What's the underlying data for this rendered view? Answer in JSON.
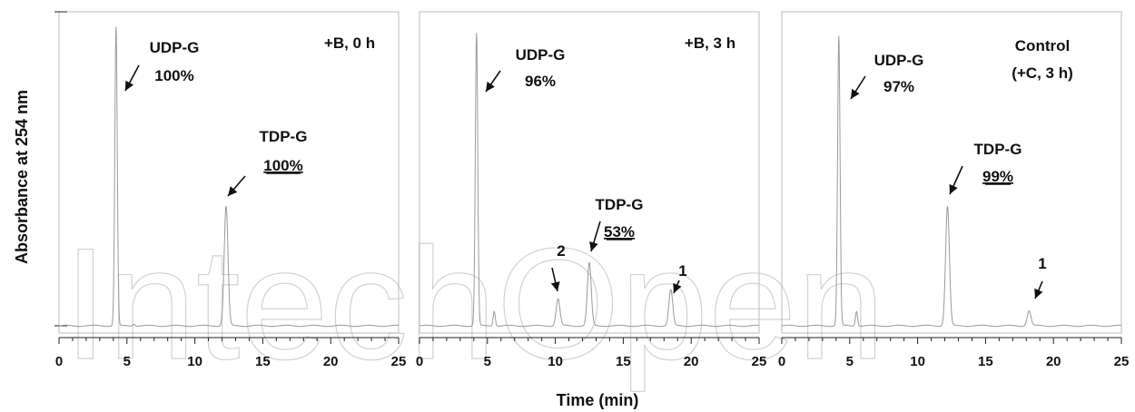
{
  "chart_data": [
    {
      "type": "line",
      "title": "+B, 0 h",
      "xlabel": "Time (min)",
      "ylabel": "Absorbance at 254 nm",
      "xlim": [
        0,
        25
      ],
      "xticks": [
        "0",
        "5",
        "10",
        "15",
        "20",
        "25"
      ],
      "grid": false,
      "peaks": [
        {
          "time": 4.2,
          "height": 1.0,
          "label": "UDP-G",
          "value": "100%",
          "underline": false
        },
        {
          "time": 12.3,
          "height": 0.4,
          "label": "TDP-G",
          "value": "100%",
          "underline": true
        }
      ]
    },
    {
      "type": "line",
      "title": "+B, 3 h",
      "xlabel": "Time (min)",
      "ylabel": "Absorbance at 254 nm",
      "xlim": [
        0,
        25
      ],
      "xticks": [
        "0",
        "5",
        "10",
        "15",
        "20",
        "25"
      ],
      "grid": false,
      "peaks": [
        {
          "time": 4.2,
          "height": 0.98,
          "label": "UDP-G",
          "value": "96%",
          "underline": false
        },
        {
          "time": 10.2,
          "height": 0.09,
          "label": "2",
          "value": "",
          "underline": false
        },
        {
          "time": 12.5,
          "height": 0.21,
          "label": "TDP-G",
          "value": "53%",
          "underline": true
        },
        {
          "time": 18.5,
          "height": 0.12,
          "label": "1",
          "value": "",
          "underline": false
        }
      ]
    },
    {
      "type": "line",
      "title": "Control\n(+C, 3 h)",
      "xlabel": "Time (min)",
      "ylabel": "Absorbance at 254 nm",
      "xlim": [
        0,
        25
      ],
      "xticks": [
        "0",
        "5",
        "10",
        "15",
        "20",
        "25"
      ],
      "grid": false,
      "peaks": [
        {
          "time": 4.2,
          "height": 0.97,
          "label": "UDP-G",
          "value": "97%",
          "underline": false
        },
        {
          "time": 12.2,
          "height": 0.4,
          "label": "TDP-G",
          "value": "99%",
          "underline": true
        },
        {
          "time": 18.2,
          "height": 0.05,
          "label": "1",
          "value": "",
          "underline": false
        }
      ]
    }
  ],
  "figure": {
    "ylabel": "Absorbance at 254 nm",
    "xlabel": "Time (min)",
    "panel_titles": [
      [
        "+B, 0 h"
      ],
      [
        "+B, 3 h"
      ],
      [
        "Control",
        "(+C, 3 h)"
      ]
    ],
    "watermark": "IntechOpen"
  },
  "colors": {
    "trace": "#9a9a9a",
    "frame": "#bdbdbd",
    "text": "#111111",
    "watermark": "#d2d2d2"
  }
}
